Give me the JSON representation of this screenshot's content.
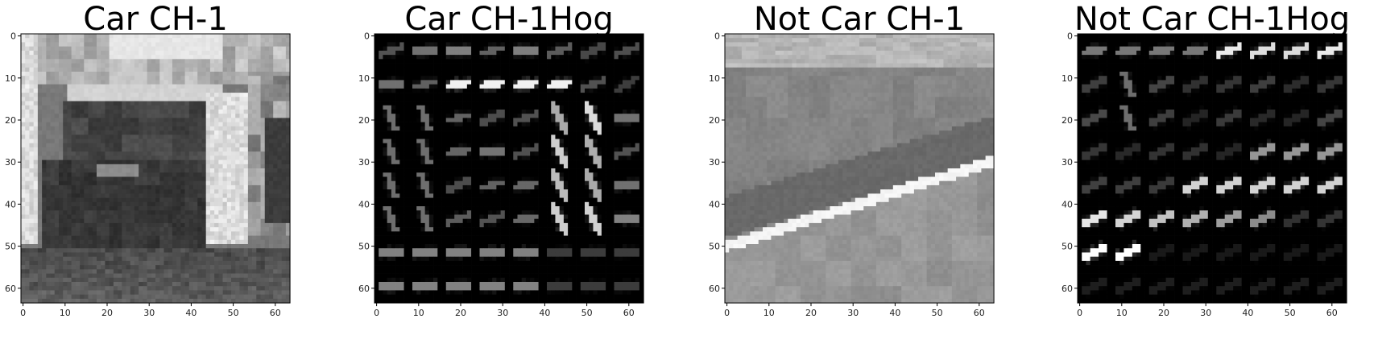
{
  "chart_data": [
    {
      "type": "heatmap",
      "title": "Car CH-1",
      "variant": "car",
      "xlim": [
        0,
        63
      ],
      "ylim": [
        63,
        0
      ],
      "xticks": [
        "0",
        "10",
        "20",
        "30",
        "40",
        "50",
        "60"
      ],
      "yticks": [
        "0",
        "10",
        "20",
        "30",
        "40",
        "50",
        "60"
      ]
    },
    {
      "type": "heatmap",
      "title": "Car CH-1Hog",
      "variant": "hog",
      "xlim": [
        0,
        63
      ],
      "ylim": [
        63,
        0
      ],
      "xticks": [
        "0",
        "10",
        "20",
        "30",
        "40",
        "50",
        "60"
      ],
      "yticks": [
        "0",
        "10",
        "20",
        "30",
        "40",
        "50",
        "60"
      ]
    },
    {
      "type": "heatmap",
      "title": "Not Car CH-1",
      "variant": "road",
      "xlim": [
        0,
        63
      ],
      "ylim": [
        63,
        0
      ],
      "xticks": [
        "0",
        "10",
        "20",
        "30",
        "40",
        "50",
        "60"
      ],
      "yticks": [
        "0",
        "10",
        "20",
        "30",
        "40",
        "50",
        "60"
      ]
    },
    {
      "type": "heatmap",
      "title": "Not Car CH-1Hog",
      "variant": "hog2",
      "xlim": [
        0,
        63
      ],
      "ylim": [
        63,
        0
      ],
      "xticks": [
        "0",
        "10",
        "20",
        "30",
        "40",
        "50",
        "60"
      ],
      "yticks": [
        "0",
        "10",
        "20",
        "30",
        "40",
        "50",
        "60"
      ]
    }
  ]
}
